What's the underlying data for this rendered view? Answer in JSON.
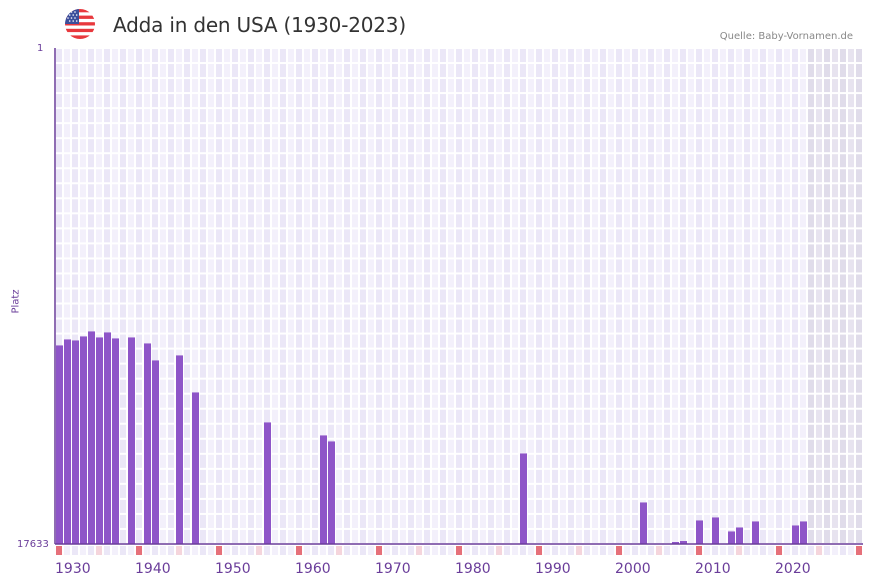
{
  "header": {
    "title": "Adda in den USA (1930-2023)",
    "source": "Quelle: Baby-Vornamen.de",
    "flag": "usa-flag-icon"
  },
  "colors": {
    "bar": "#8e55c8",
    "axis": "#6a3d9a",
    "grid_bg_a": "#f3f0fb",
    "grid_bg_b": "#ebe7f7",
    "future_shade": "#e4e0ee",
    "decade_marker": "#e6707a",
    "half_decade_marker": "#f5d5dc"
  },
  "chart_data": {
    "type": "bar",
    "title": "Adda in den USA (1930-2023)",
    "xlabel": "",
    "ylabel": "Platz",
    "y_inverted": true,
    "ylim": [
      1,
      17633
    ],
    "yticks": [
      "1",
      "17633"
    ],
    "xlim": [
      1930,
      2030
    ],
    "xticks": [
      "1930",
      "1940",
      "1950",
      "1960",
      "1970",
      "1980",
      "1990",
      "2000",
      "2010",
      "2020"
    ],
    "grid": true,
    "legend": null,
    "shaded_future_from": 2024,
    "x": [
      1930,
      1931,
      1932,
      1933,
      1934,
      1935,
      1936,
      1937,
      1939,
      1941,
      1942,
      1945,
      1947,
      1956,
      1963,
      1964,
      1988,
      2003,
      2007,
      2008,
      2010,
      2012,
      2014,
      2015,
      2017,
      2022,
      2023
    ],
    "values": [
      10574,
      10361,
      10397,
      10254,
      10076,
      10290,
      10112,
      10325,
      10290,
      10503,
      11107,
      10929,
      12245,
      13311,
      13773,
      13987,
      14413,
      16156,
      17562,
      17527,
      16796,
      16689,
      17187,
      17045,
      16831,
      16974,
      16831
    ]
  }
}
